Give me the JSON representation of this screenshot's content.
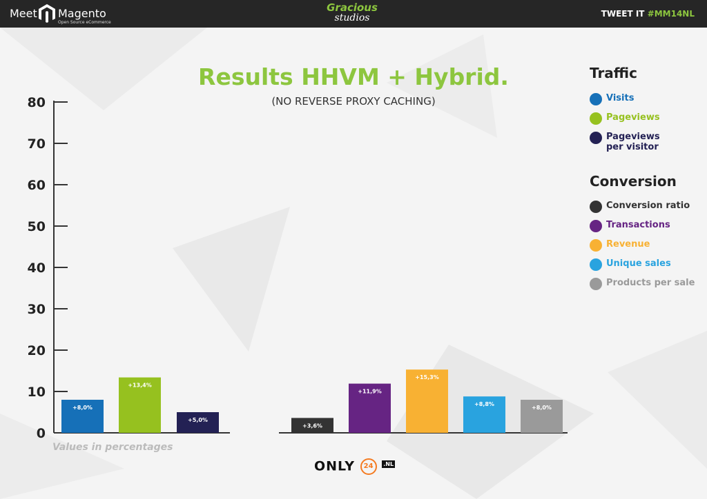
{
  "header": {
    "meet": "Meet",
    "magento": "Magento",
    "magento_sub": "Open Source eCommerce",
    "gracious_line1": "Gracious",
    "gracious_line2": "studios",
    "tweet_prefix": "TWEET IT",
    "tweet_tag": "#MM14NL"
  },
  "footer": {
    "values_note": "Values in percentages",
    "only_brand": "ONLY",
    "only_badge": "24",
    "only_tld": ".NL"
  },
  "legend": {
    "traffic_title": "Traffic",
    "traffic_items": [
      {
        "label": "Visits",
        "color": "#1670b8"
      },
      {
        "label": "Pageviews",
        "color": "#96c11f"
      },
      {
        "label": "Pageviews per visitor",
        "color": "#232154"
      }
    ],
    "conversion_title": "Conversion",
    "conversion_items": [
      {
        "label": "Conversion ratio",
        "color": "#333333"
      },
      {
        "label": "Transactions",
        "color": "#662483"
      },
      {
        "label": "Revenue",
        "color": "#f8b133"
      },
      {
        "label": "Unique sales",
        "color": "#29a3df"
      },
      {
        "label": "Products per sale",
        "color": "#9a9a9a"
      }
    ]
  },
  "chart_data": {
    "type": "bar",
    "title": "Results HHVM + Hybrid.",
    "subtitle": "(NO REVERSE PROXY CACHING)",
    "ylim": [
      0,
      80
    ],
    "yticks": [
      0,
      10,
      20,
      30,
      40,
      50,
      60,
      70,
      80
    ],
    "groups": [
      {
        "name": "Traffic",
        "bars": [
          {
            "category": "Visits",
            "value": 8.0,
            "label": "+8,0%",
            "color": "#1670b8"
          },
          {
            "category": "Pageviews",
            "value": 13.4,
            "label": "+13,4%",
            "color": "#96c11f"
          },
          {
            "category": "Pageviews per visitor",
            "value": 5.0,
            "label": "+5,0%",
            "color": "#232154"
          }
        ]
      },
      {
        "name": "Conversion",
        "bars": [
          {
            "category": "Conversion ratio",
            "value": 3.6,
            "label": "+3,6%",
            "color": "#333333"
          },
          {
            "category": "Transactions",
            "value": 11.9,
            "label": "+11,9%",
            "color": "#662483"
          },
          {
            "category": "Revenue",
            "value": 15.3,
            "label": "+15,3%",
            "color": "#f8b133"
          },
          {
            "category": "Unique sales",
            "value": 8.8,
            "label": "+8,8%",
            "color": "#29a3df"
          },
          {
            "category": "Products per sale",
            "value": 8.0,
            "label": "+8,0%",
            "color": "#9a9a9a"
          }
        ]
      }
    ]
  }
}
